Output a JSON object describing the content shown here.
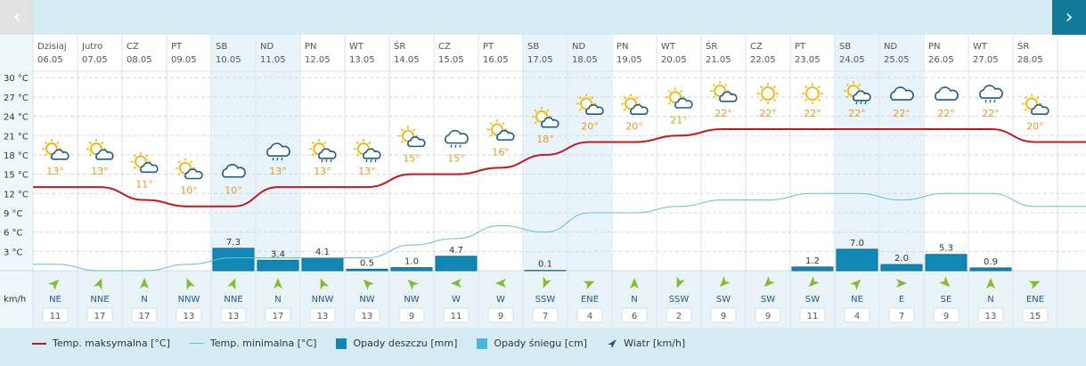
{
  "nav": {
    "prev_icon": "chevron-left-icon",
    "next_icon": "chevron-right-icon",
    "prev_glyph": "‹",
    "next_glyph": "›"
  },
  "units": {
    "temp": "°C",
    "wind": "km/h"
  },
  "colors": {
    "max_line": "#c8171d",
    "min_line": "#62c0df",
    "rain": "#1187b6",
    "snow": "#4cb5d9",
    "wind_arrow": "#7fbf2a",
    "sun": "#f4b400",
    "cloud": "#1a5a8c",
    "temp_label": "#e39a1f"
  },
  "legend": [
    {
      "label": "Temp. maksymalna [°C]",
      "kind": "line",
      "color": "#c8171d"
    },
    {
      "label": "Temp. minimalna [°C]",
      "kind": "thin-line",
      "color": "#62c0df"
    },
    {
      "label": "Opady deszczu [mm]",
      "kind": "box",
      "color": "#1187b6"
    },
    {
      "label": "Opady śniegu [cm]",
      "kind": "box",
      "color": "#4cb5d9"
    },
    {
      "label": "Wiatr [km/h]",
      "kind": "arrow",
      "color": "#1a5a8c"
    }
  ],
  "chart_data": {
    "type": "bar",
    "y_ticks": [
      3,
      6,
      9,
      12,
      15,
      18,
      21,
      24,
      27,
      30
    ],
    "ylim": [
      0,
      31
    ],
    "days": [
      "Dzisiaj",
      "Jutro",
      "CZ",
      "PT",
      "SB",
      "ND",
      "PN",
      "WT",
      "ŚR",
      "CZ",
      "PT",
      "SB",
      "ND",
      "PN",
      "WT",
      "ŚR",
      "CZ",
      "PT",
      "SB",
      "ND",
      "PN",
      "WT",
      "ŚR"
    ],
    "dates": [
      "06.05",
      "07.05",
      "08.05",
      "09.05",
      "10.05",
      "11.05",
      "12.05",
      "13.05",
      "14.05",
      "15.05",
      "16.05",
      "17.05",
      "18.05",
      "19.05",
      "20.05",
      "21.05",
      "22.05",
      "23.05",
      "24.05",
      "25.05",
      "26.05",
      "27.05",
      "28.05"
    ],
    "weekend": [
      false,
      false,
      false,
      false,
      true,
      true,
      false,
      false,
      false,
      false,
      false,
      true,
      true,
      false,
      false,
      false,
      false,
      false,
      true,
      true,
      false,
      false,
      false
    ],
    "icons": [
      "sun-cloud",
      "sun-cloud",
      "sun-cloud",
      "sun-cloud",
      "cloud",
      "cloud-rain",
      "sun-cloud-rain",
      "sun-cloud-rain",
      "sun-cloud",
      "cloud-rain",
      "sun-cloud",
      "sun-cloud",
      "sun-cloud",
      "sun-cloud",
      "sun-cloud",
      "sun-cloud",
      "sun",
      "sun",
      "sun-cloud-rain",
      "cloud",
      "cloud",
      "cloud-rain",
      "sun-cloud"
    ],
    "temp_labels": [
      "13°",
      "13°",
      "11°",
      "10°",
      "10°",
      "13°",
      "13°",
      "13°",
      "15°",
      "15°",
      "16°",
      "18°",
      "20°",
      "20°",
      "21°",
      "22°",
      "22°",
      "22°",
      "22°",
      "22°",
      "22°",
      "22°",
      "20°"
    ],
    "temp_max": [
      13,
      13,
      11,
      10,
      10,
      13,
      13,
      13,
      15,
      15,
      16,
      18,
      20,
      20,
      21,
      22,
      22,
      22,
      22,
      22,
      22,
      22,
      20
    ],
    "temp_min": [
      1,
      0,
      0,
      1,
      2,
      2,
      2,
      2,
      4,
      5,
      7,
      6,
      9,
      9,
      10,
      11,
      11,
      12,
      12,
      11,
      12,
      12,
      10
    ],
    "rain": [
      0,
      0,
      0,
      0,
      7.3,
      3.4,
      4.1,
      0.5,
      1.0,
      4.7,
      0,
      0.1,
      0,
      0,
      0,
      0,
      0,
      1.2,
      7.0,
      2.0,
      5.3,
      0.9,
      0
    ],
    "rain_labels": [
      "",
      "",
      "",
      "",
      "7.3",
      "3.4",
      "4.1",
      "0.5",
      "1.0",
      "4.7",
      "",
      "0.1",
      "",
      "",
      "",
      "",
      "",
      "1.2",
      "7.0",
      "2.0",
      "5.3",
      "0.9",
      ""
    ],
    "wind_dir": [
      "NE",
      "NNE",
      "N",
      "NNW",
      "NNE",
      "N",
      "NNW",
      "NW",
      "NW",
      "W",
      "W",
      "SSW",
      "ENE",
      "N",
      "SSW",
      "SW",
      "SW",
      "SW",
      "NE",
      "E",
      "SE",
      "N",
      "ENE"
    ],
    "wind_speed": [
      "11",
      "17",
      "17",
      "13",
      "13",
      "17",
      "13",
      "13",
      "9",
      "11",
      "9",
      "7",
      "4",
      "6",
      "2",
      "9",
      "9",
      "11",
      "4",
      "7",
      "9",
      "13",
      "15"
    ]
  }
}
